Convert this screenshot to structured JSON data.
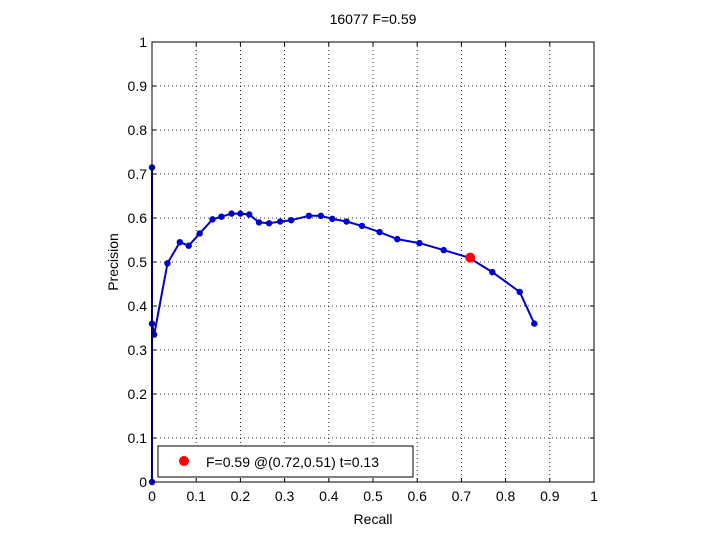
{
  "chart_data": {
    "type": "line",
    "title": "16077 F=0.59",
    "xlabel": "Recall",
    "ylabel": "Precision",
    "xlim": [
      0,
      1
    ],
    "ylim": [
      0,
      1
    ],
    "xticks": [
      0,
      0.1,
      0.2,
      0.3,
      0.4,
      0.5,
      0.6,
      0.7,
      0.8,
      0.9,
      1
    ],
    "yticks": [
      0,
      0.1,
      0.2,
      0.3,
      0.4,
      0.5,
      0.6,
      0.7,
      0.8,
      0.9,
      1
    ],
    "xtick_labels": [
      "0",
      "0.1",
      "0.2",
      "0.3",
      "0.4",
      "0.5",
      "0.6",
      "0.7",
      "0.8",
      "0.9",
      "1"
    ],
    "ytick_labels": [
      "0",
      "0.1",
      "0.2",
      "0.3",
      "0.4",
      "0.5",
      "0.6",
      "0.7",
      "0.8",
      "0.9",
      "1"
    ],
    "grid": true,
    "grid_style": "dotted",
    "legend_position": "bottom-left",
    "series": [
      {
        "color": "#0000cc",
        "points": [
          [
            0.0,
            0.0
          ],
          [
            0.0,
            0.715
          ],
          [
            0.0,
            0.36
          ],
          [
            0.005,
            0.335
          ],
          [
            0.035,
            0.497
          ],
          [
            0.063,
            0.545
          ],
          [
            0.083,
            0.537
          ],
          [
            0.108,
            0.565
          ],
          [
            0.137,
            0.597
          ],
          [
            0.157,
            0.603
          ],
          [
            0.18,
            0.61
          ],
          [
            0.2,
            0.61
          ],
          [
            0.22,
            0.608
          ],
          [
            0.242,
            0.59
          ],
          [
            0.265,
            0.588
          ],
          [
            0.29,
            0.592
          ],
          [
            0.315,
            0.595
          ],
          [
            0.355,
            0.605
          ],
          [
            0.382,
            0.605
          ],
          [
            0.408,
            0.598
          ],
          [
            0.44,
            0.592
          ],
          [
            0.475,
            0.582
          ],
          [
            0.515,
            0.568
          ],
          [
            0.555,
            0.552
          ],
          [
            0.605,
            0.543
          ],
          [
            0.66,
            0.527
          ],
          [
            0.717,
            0.51
          ],
          [
            0.77,
            0.477
          ],
          [
            0.832,
            0.432
          ],
          [
            0.865,
            0.36
          ]
        ]
      }
    ],
    "best_point": {
      "recall": 0.72,
      "precision": 0.51,
      "color": "#ff0000"
    },
    "legend": {
      "label": "F=0.59 @(0.72,0.51) t=0.13",
      "marker_color": "#ff0000"
    }
  }
}
